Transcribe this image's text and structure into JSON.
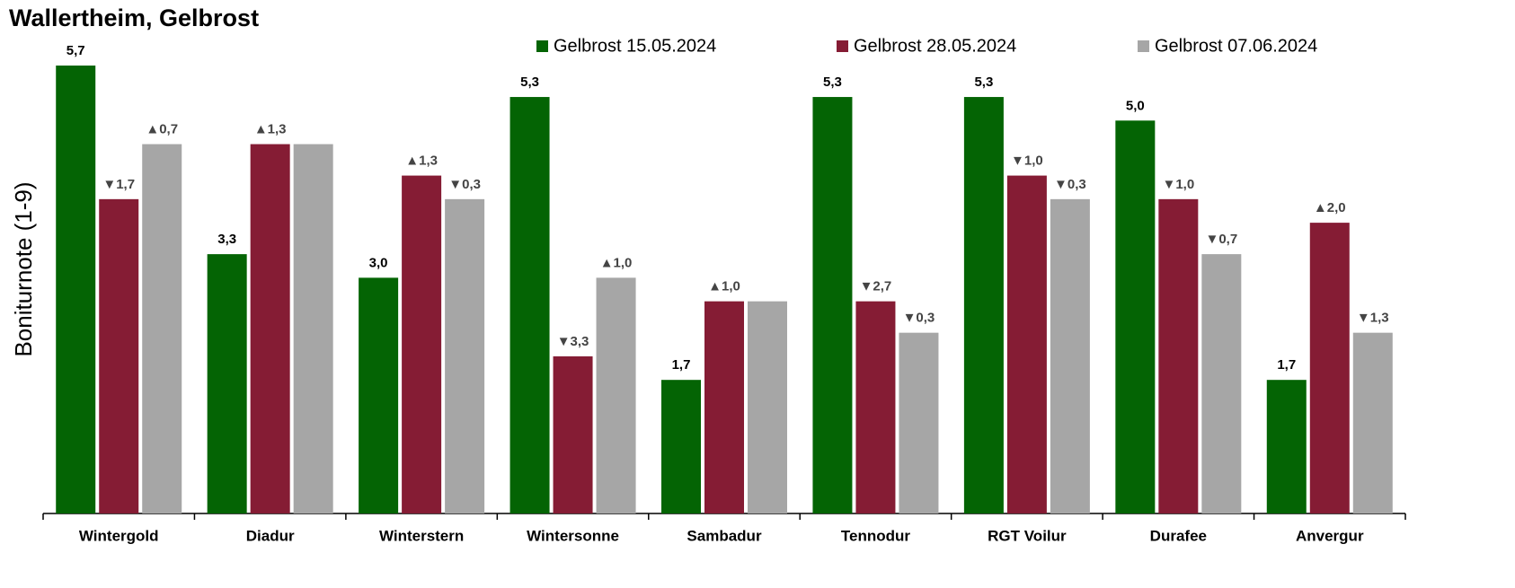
{
  "chart_data": {
    "type": "bar",
    "title": "Wallertheim, Gelbrost",
    "y_label": "Boniturnote (1-9)",
    "categories": [
      "Wintergold",
      "Diadur",
      "Winterstern",
      "Wintersonne",
      "Sambadur",
      "Tennodur",
      "RGT Voilur",
      "Durafee",
      "Anvergur"
    ],
    "series": [
      {
        "name": "Gelbrost 15.05.2024",
        "color": "#046404",
        "values": [
          5.7,
          3.3,
          3.0,
          5.3,
          1.7,
          5.3,
          5.3,
          5.0,
          1.7
        ],
        "value_labels": [
          "5,7",
          "3,3",
          "3,0",
          "5,3",
          "1,7",
          "5,3",
          "5,3",
          "5,0",
          "1,7"
        ]
      },
      {
        "name": "Gelbrost 28.05.2024",
        "color": "#851c34",
        "values": [
          4.0,
          4.7,
          4.3,
          2.0,
          2.7,
          2.7,
          4.3,
          4.0,
          3.7
        ],
        "change_labels": [
          "▼1,7",
          "▲1,3",
          "▲1,3",
          "▼3,3",
          "▲1,0",
          "▼2,7",
          "▼1,0",
          "▼1,0",
          "▲2,0"
        ]
      },
      {
        "name": "Gelbrost 07.06.2024",
        "color": "#a6a6a6",
        "values": [
          4.7,
          4.7,
          4.0,
          3.0,
          2.7,
          2.3,
          4.0,
          3.3,
          2.3
        ],
        "change_labels": [
          "▲0,7",
          null,
          "▼0,3",
          "▲1,0",
          null,
          "▼0,3",
          "▼0,3",
          "▼0,7",
          "▼1,3"
        ]
      }
    ],
    "ylim": [
      0,
      6.5
    ],
    "legend": "top"
  }
}
